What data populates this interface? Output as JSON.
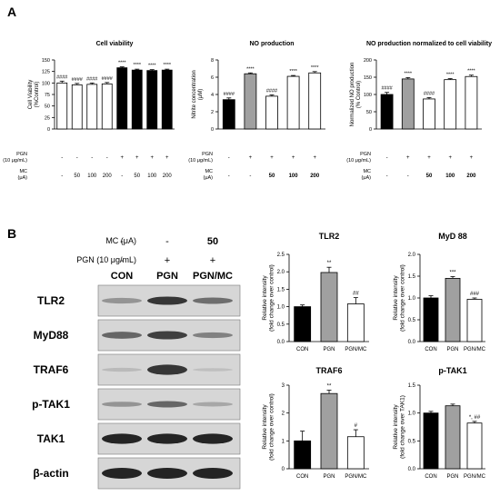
{
  "panel_letters": [
    "A",
    "B"
  ],
  "panel_a_conditions": {
    "pgn_label": "PGN (10 μg/mL)",
    "mc_label": "MC (μA)",
    "cell_viability_pgn": [
      "-",
      "-",
      "-",
      "-",
      "+",
      "+",
      "+",
      "+"
    ],
    "cell_viability_mc": [
      "-",
      "50",
      "100",
      "200",
      "-",
      "50",
      "100",
      "200"
    ],
    "no_pgn": [
      "-",
      "+",
      "+",
      "+",
      "+"
    ],
    "no_mc": [
      "-",
      "-",
      "50",
      "100",
      "200"
    ]
  },
  "panel_b_conditions": {
    "mc_label": "MC (μA)",
    "pgn_label": "PGN (10 μg/mL)",
    "mc_values": [
      "-",
      "-",
      "50"
    ],
    "pgn_values": [
      "-",
      "+",
      "+"
    ],
    "lanes": [
      "CON",
      "PGN",
      "PGN/MC"
    ],
    "blots": [
      "TLR2",
      "MyD88",
      "TRAF6",
      "p-TAK1",
      "TAK1",
      "β-actin"
    ]
  },
  "chart_data": [
    {
      "type": "bar",
      "title": "Cell viability",
      "ylabel": "Cell Viability (%Control)",
      "ylim": [
        0,
        150
      ],
      "yticks": [
        "0",
        "25",
        "50",
        "75",
        "100",
        "125",
        "150"
      ],
      "values": [
        100,
        96,
        97,
        98,
        133,
        128,
        127,
        128
      ],
      "errors": [
        4,
        3,
        3,
        3,
        2,
        2,
        2,
        2
      ],
      "annotations": [
        "####",
        "####",
        "####",
        "####",
        "****",
        "****",
        "****",
        "****"
      ],
      "fills": [
        "#ffffff",
        "#ffffff",
        "#ffffff",
        "#ffffff",
        "#000000",
        "#000000",
        "#000000",
        "#000000"
      ]
    },
    {
      "type": "bar",
      "title": "NO production",
      "ylabel": "Nitrite concentration (μM)",
      "ylim": [
        0,
        8
      ],
      "yticks": [
        "0",
        "2",
        "4",
        "6",
        "8"
      ],
      "values": [
        3.4,
        6.4,
        3.8,
        6.1,
        6.5
      ],
      "errors": [
        0.2,
        0.1,
        0.15,
        0.1,
        0.15
      ],
      "annotations": [
        "####",
        "****",
        "####",
        "****",
        "****"
      ],
      "fills": [
        "#000000",
        "#a0a0a0",
        "#ffffff",
        "#ffffff",
        "#ffffff"
      ]
    },
    {
      "type": "bar",
      "title": "NO production normalized to cell viability",
      "ylabel": "Normalized NO production (% Control)",
      "ylim": [
        0,
        200
      ],
      "yticks": [
        "0",
        "50",
        "100",
        "150",
        "200"
      ],
      "values": [
        100,
        145,
        87,
        143,
        152
      ],
      "errors": [
        6,
        4,
        4,
        3,
        4
      ],
      "annotations": [
        "####",
        "****",
        "####",
        "****",
        "****"
      ],
      "fills": [
        "#000000",
        "#a0a0a0",
        "#ffffff",
        "#ffffff",
        "#ffffff"
      ]
    },
    {
      "type": "bar",
      "title": "TLR2",
      "ylabel": "Relative intensity (fold change over control)",
      "ylim": [
        0,
        2.5
      ],
      "yticks": [
        "0.0",
        "0.5",
        "1.0",
        "1.5",
        "2.0",
        "2.5"
      ],
      "categories": [
        "CON",
        "PGN",
        "PGN/MC"
      ],
      "values": [
        1.0,
        1.98,
        1.08
      ],
      "errors": [
        0.05,
        0.15,
        0.18
      ],
      "annotations": [
        "",
        "**",
        "##"
      ],
      "fills": [
        "#000000",
        "#a0a0a0",
        "#ffffff"
      ]
    },
    {
      "type": "bar",
      "title": "MyD 88",
      "ylabel": "Relative intensity (fold change over control)",
      "ylim": [
        0,
        2.0
      ],
      "yticks": [
        "0.0",
        "0.5",
        "1.0",
        "1.5",
        "2.0"
      ],
      "categories": [
        "CON",
        "PGN",
        "PGN/MC"
      ],
      "values": [
        1.0,
        1.45,
        0.97
      ],
      "errors": [
        0.05,
        0.04,
        0.03
      ],
      "annotations": [
        "",
        "***",
        "###"
      ],
      "fills": [
        "#000000",
        "#a0a0a0",
        "#ffffff"
      ]
    },
    {
      "type": "bar",
      "title": "TRAF6",
      "ylabel": "Relative intensity (fold change over control)",
      "ylim": [
        0,
        3
      ],
      "yticks": [
        "0",
        "1",
        "2",
        "3"
      ],
      "categories": [
        "CON",
        "PGN",
        "PGN/MC"
      ],
      "values": [
        1.0,
        2.7,
        1.15
      ],
      "errors": [
        0.35,
        0.12,
        0.25
      ],
      "annotations": [
        "",
        "**",
        "#"
      ],
      "fills": [
        "#000000",
        "#a0a0a0",
        "#ffffff"
      ]
    },
    {
      "type": "bar",
      "title": "p-TAK1",
      "ylabel": "Relative intensity (fold change over TAK1)",
      "ylim": [
        0,
        1.5
      ],
      "yticks": [
        "0.0",
        "0.5",
        "1.0",
        "1.5"
      ],
      "categories": [
        "CON",
        "PGN",
        "PGN/MC"
      ],
      "values": [
        1.0,
        1.13,
        0.82
      ],
      "errors": [
        0.03,
        0.03,
        0.03
      ],
      "annotations": [
        "",
        "",
        "*, ##"
      ],
      "fills": [
        "#000000",
        "#a0a0a0",
        "#ffffff"
      ]
    }
  ]
}
